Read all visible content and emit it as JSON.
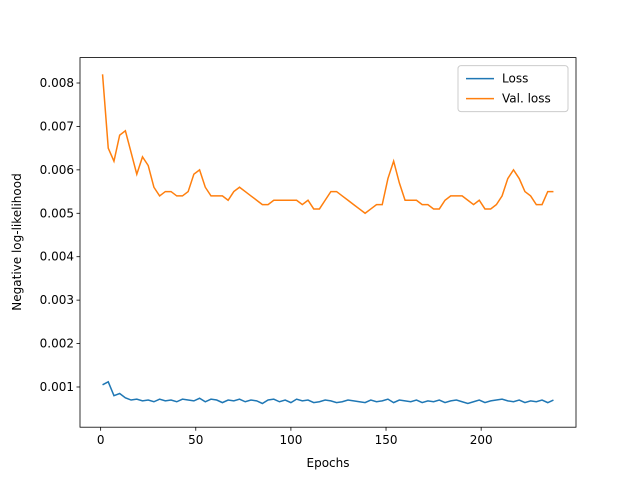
{
  "chart_data": {
    "type": "line",
    "x_label": "Epochs",
    "y_label": "Negative log-likelihood",
    "x": [
      1,
      4,
      7,
      10,
      13,
      16,
      19,
      22,
      25,
      28,
      31,
      34,
      37,
      40,
      43,
      46,
      49,
      52,
      55,
      58,
      61,
      64,
      67,
      70,
      73,
      76,
      79,
      82,
      85,
      88,
      91,
      94,
      97,
      100,
      103,
      106,
      109,
      112,
      115,
      118,
      121,
      124,
      127,
      130,
      133,
      136,
      139,
      142,
      145,
      148,
      151,
      154,
      157,
      160,
      163,
      166,
      169,
      172,
      175,
      178,
      181,
      184,
      187,
      190,
      193,
      196,
      199,
      202,
      205,
      208,
      211,
      214,
      217,
      220,
      223,
      226,
      229,
      232,
      235,
      238
    ],
    "series": [
      {
        "name": "Loss",
        "color": "#1f77b4",
        "values": [
          0.00105,
          0.00112,
          0.0008,
          0.00085,
          0.00075,
          0.0007,
          0.00072,
          0.00068,
          0.0007,
          0.00066,
          0.00072,
          0.00068,
          0.0007,
          0.00066,
          0.00072,
          0.0007,
          0.00068,
          0.00074,
          0.00066,
          0.00072,
          0.0007,
          0.00064,
          0.0007,
          0.00068,
          0.00072,
          0.00066,
          0.0007,
          0.00068,
          0.00062,
          0.0007,
          0.00072,
          0.00066,
          0.0007,
          0.00064,
          0.00072,
          0.00068,
          0.0007,
          0.00064,
          0.00066,
          0.0007,
          0.00068,
          0.00064,
          0.00066,
          0.0007,
          0.00068,
          0.00066,
          0.00064,
          0.0007,
          0.00066,
          0.00068,
          0.00072,
          0.00064,
          0.0007,
          0.00068,
          0.00066,
          0.0007,
          0.00064,
          0.00068,
          0.00066,
          0.0007,
          0.00064,
          0.00068,
          0.0007,
          0.00066,
          0.00062,
          0.00066,
          0.0007,
          0.00064,
          0.00068,
          0.0007,
          0.00072,
          0.00068,
          0.00066,
          0.0007,
          0.00064,
          0.00068,
          0.00066,
          0.0007,
          0.00064,
          0.0007
        ]
      },
      {
        "name": "Val. loss",
        "color": "#ff7f0e",
        "values": [
          0.0082,
          0.0065,
          0.0062,
          0.0068,
          0.0069,
          0.0064,
          0.0059,
          0.0063,
          0.0061,
          0.0056,
          0.0054,
          0.0055,
          0.0055,
          0.0054,
          0.0054,
          0.0055,
          0.0059,
          0.006,
          0.0056,
          0.0054,
          0.0054,
          0.0054,
          0.0053,
          0.0055,
          0.0056,
          0.0055,
          0.0054,
          0.0053,
          0.0052,
          0.0052,
          0.0053,
          0.0053,
          0.0053,
          0.0053,
          0.0053,
          0.0052,
          0.0053,
          0.0051,
          0.0051,
          0.0053,
          0.0055,
          0.0055,
          0.0054,
          0.0053,
          0.0052,
          0.0051,
          0.005,
          0.0051,
          0.0052,
          0.0052,
          0.0058,
          0.0062,
          0.0057,
          0.0053,
          0.0053,
          0.0053,
          0.0052,
          0.0052,
          0.0051,
          0.0051,
          0.0053,
          0.0054,
          0.0054,
          0.0054,
          0.0053,
          0.0052,
          0.0053,
          0.0051,
          0.0051,
          0.0052,
          0.0054,
          0.0058,
          0.006,
          0.0058,
          0.0055,
          0.0054,
          0.0052,
          0.0052,
          0.0055,
          0.0055
        ]
      }
    ],
    "xlim": [
      -10.85,
      249.85
    ],
    "xticks": [
      0,
      50,
      100,
      150,
      200
    ],
    "ylim": [
      7.4e-05,
      0.008585
    ],
    "yticks": [
      0.001,
      0.002,
      0.003,
      0.004,
      0.005,
      0.006,
      0.007,
      0.008
    ],
    "legend": "upper right",
    "grid": false
  }
}
